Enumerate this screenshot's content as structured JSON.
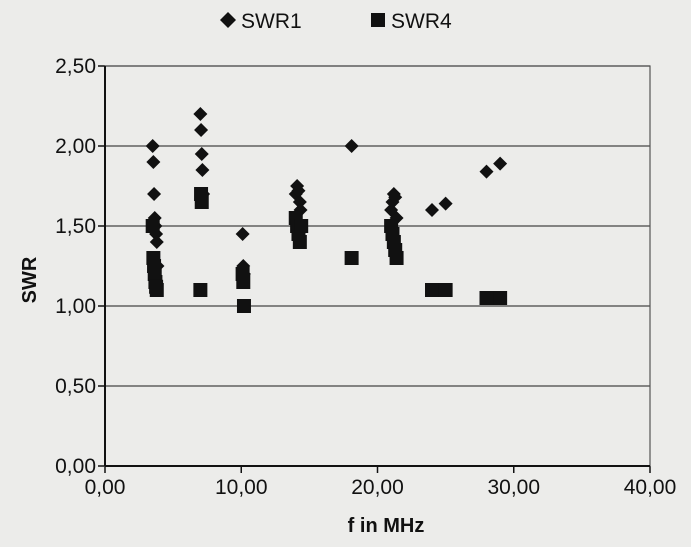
{
  "chart_data": {
    "type": "scatter",
    "title": "",
    "xlabel": "f in MHz",
    "ylabel": "SWR",
    "xlim": [
      0,
      40
    ],
    "ylim": [
      0,
      2.5
    ],
    "x_ticks": [
      "0,00",
      "10,00",
      "20,00",
      "30,00",
      "40,00"
    ],
    "y_ticks": [
      "0,00",
      "0,50",
      "1,00",
      "1,50",
      "2,00",
      "2,50"
    ],
    "grid": "horizontal",
    "legend_position": "top-center",
    "series": [
      {
        "name": "SWR1",
        "marker": "diamond",
        "color": "#111111",
        "points": [
          [
            3.5,
            2.0
          ],
          [
            3.55,
            1.9
          ],
          [
            3.6,
            1.7
          ],
          [
            3.65,
            1.55
          ],
          [
            3.7,
            1.5
          ],
          [
            3.75,
            1.45
          ],
          [
            3.8,
            1.4
          ],
          [
            3.85,
            1.25
          ],
          [
            7.0,
            2.2
          ],
          [
            7.05,
            2.1
          ],
          [
            7.1,
            1.95
          ],
          [
            7.15,
            1.85
          ],
          [
            7.2,
            1.7
          ],
          [
            10.1,
            1.45
          ],
          [
            10.15,
            1.25
          ],
          [
            10.2,
            1.2
          ],
          [
            14.0,
            1.7
          ],
          [
            14.1,
            1.75
          ],
          [
            14.2,
            1.72
          ],
          [
            14.3,
            1.65
          ],
          [
            14.35,
            1.6
          ],
          [
            18.1,
            2.0
          ],
          [
            21.0,
            1.6
          ],
          [
            21.1,
            1.65
          ],
          [
            21.2,
            1.7
          ],
          [
            21.3,
            1.68
          ],
          [
            21.4,
            1.55
          ],
          [
            24.0,
            1.6
          ],
          [
            25.0,
            1.64
          ],
          [
            28.0,
            1.84
          ],
          [
            29.0,
            1.89
          ]
        ]
      },
      {
        "name": "SWR4",
        "marker": "square",
        "color": "#111111",
        "points": [
          [
            3.5,
            1.5
          ],
          [
            3.55,
            1.3
          ],
          [
            3.6,
            1.25
          ],
          [
            3.65,
            1.2
          ],
          [
            3.7,
            1.15
          ],
          [
            3.75,
            1.12
          ],
          [
            3.8,
            1.1
          ],
          [
            7.0,
            1.1
          ],
          [
            7.05,
            1.7
          ],
          [
            7.1,
            1.65
          ],
          [
            10.1,
            1.2
          ],
          [
            10.15,
            1.15
          ],
          [
            10.2,
            1.0
          ],
          [
            14.0,
            1.55
          ],
          [
            14.1,
            1.5
          ],
          [
            14.2,
            1.45
          ],
          [
            14.3,
            1.4
          ],
          [
            14.4,
            1.5
          ],
          [
            18.1,
            1.3
          ],
          [
            21.0,
            1.5
          ],
          [
            21.1,
            1.45
          ],
          [
            21.2,
            1.4
          ],
          [
            21.3,
            1.35
          ],
          [
            21.4,
            1.3
          ],
          [
            24.0,
            1.1
          ],
          [
            25.0,
            1.1
          ],
          [
            28.0,
            1.05
          ],
          [
            29.0,
            1.05
          ]
        ]
      }
    ]
  }
}
